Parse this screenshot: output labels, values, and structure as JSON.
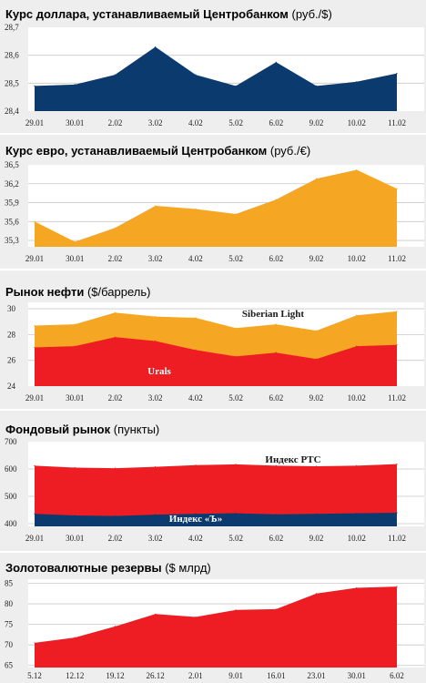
{
  "colors": {
    "blue": "#0b3a6e",
    "orange": "#f5a623",
    "red": "#ee1d23",
    "panel": "#eeeeee",
    "grid": "#c8c8c8"
  },
  "chart_data": [
    {
      "type": "area",
      "title": "Курс доллара, устанавливаемый Центробанком",
      "unit": "(руб./$)",
      "categories": [
        "29.01",
        "30.01",
        "2.02",
        "3.02",
        "4.02",
        "5.02",
        "6.02",
        "9.02",
        "10.02",
        "11.02"
      ],
      "series": [
        {
          "values": [
            28.49,
            28.495,
            28.53,
            28.63,
            28.53,
            28.49,
            28.575,
            28.49,
            28.505,
            28.535
          ],
          "color": "#0b3a6e"
        }
      ],
      "yticks": [
        "28,4",
        "28,5",
        "28,6",
        "28,7"
      ],
      "ylim": [
        28.4,
        28.7
      ],
      "grid": true
    },
    {
      "type": "area",
      "title": "Курс евро, устанавливаемый Центробанком",
      "unit": "(руб./€)",
      "categories": [
        "29.01",
        "30.01",
        "2.02",
        "3.02",
        "4.02",
        "5.02",
        "6.02",
        "9.02",
        "10.02",
        "11.02"
      ],
      "series": [
        {
          "values": [
            35.6,
            35.28,
            35.5,
            35.85,
            35.8,
            35.72,
            35.95,
            36.28,
            36.42,
            36.12
          ],
          "color": "#f5a623"
        }
      ],
      "yticks": [
        "35,3",
        "35,6",
        "35,9",
        "36,2",
        "36,5"
      ],
      "ylim": [
        35.2,
        36.5
      ],
      "grid": true
    },
    {
      "type": "area",
      "title": "Рынок нефти",
      "unit": "($/баррель)",
      "categories": [
        "29.01",
        "30.01",
        "2.02",
        "3.02",
        "4.02",
        "5.02",
        "6.02",
        "9.02",
        "10.02",
        "11.02"
      ],
      "series": [
        {
          "name": "Siberian Light",
          "values": [
            28.7,
            28.8,
            29.7,
            29.4,
            29.3,
            28.5,
            28.8,
            28.3,
            29.5,
            29.8
          ],
          "color": "#f5a623"
        },
        {
          "name": "Urals",
          "values": [
            27.0,
            27.1,
            27.8,
            27.5,
            26.8,
            26.3,
            26.6,
            26.1,
            27.1,
            27.2
          ],
          "color": "#ee1d23"
        }
      ],
      "yticks": [
        "24",
        "26",
        "28",
        "30"
      ],
      "ylim": [
        24,
        30.5
      ],
      "grid": true
    },
    {
      "type": "area",
      "title": "Фондовый рынок",
      "unit": "(пункты)",
      "categories": [
        "29.01",
        "30.01",
        "2.02",
        "3.02",
        "4.02",
        "5.02",
        "6.02",
        "9.02",
        "10.02",
        "11.02"
      ],
      "series": [
        {
          "name": "Индекс РТС",
          "values": [
            612,
            605,
            603,
            608,
            614,
            617,
            612,
            610,
            612,
            618
          ],
          "color": "#ee1d23"
        },
        {
          "name": "Индекс «Ъ»",
          "values": [
            436,
            430,
            428,
            433,
            436,
            438,
            434,
            436,
            438,
            440
          ],
          "color": "#0b3a6e"
        }
      ],
      "yticks": [
        "400",
        "500",
        "600",
        "700"
      ],
      "ylim": [
        390,
        700
      ],
      "grid": true
    },
    {
      "type": "area",
      "title": "Золотовалютные резервы",
      "unit": "($ млрд)",
      "categories": [
        "5.12",
        "12.12",
        "19.12",
        "26.12",
        "2.01",
        "9.01",
        "16.01",
        "23.01",
        "30.01",
        "6.02"
      ],
      "series": [
        {
          "values": [
            70.5,
            71.8,
            74.5,
            77.5,
            76.8,
            78.5,
            78.7,
            82.5,
            83.9,
            84.2
          ],
          "color": "#ee1d23"
        }
      ],
      "yticks": [
        "65",
        "70",
        "75",
        "80",
        "85"
      ],
      "ylim": [
        64.5,
        86
      ],
      "grid": true
    }
  ]
}
